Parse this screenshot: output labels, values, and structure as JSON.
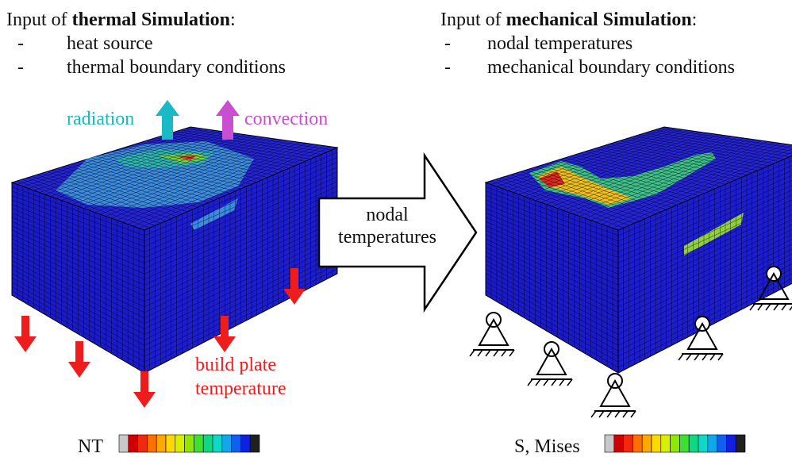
{
  "left": {
    "title": [
      "Input of",
      "thermal Simulation",
      ":"
    ],
    "bullet": "-",
    "items": [
      "heat source",
      "thermal boundary conditions"
    ],
    "radiation": "radiation",
    "convection": "convection",
    "build_plate": [
      "build plate",
      "temperature"
    ],
    "legend": "NT"
  },
  "center": {
    "arrow": [
      "nodal",
      "temperatures"
    ]
  },
  "right": {
    "title": [
      "Input of",
      "mechanical Simulation",
      ":"
    ],
    "bullet": "-",
    "items": [
      "nodal temperatures",
      "mechanical boundary conditions"
    ],
    "legend": "S, Mises"
  }
}
